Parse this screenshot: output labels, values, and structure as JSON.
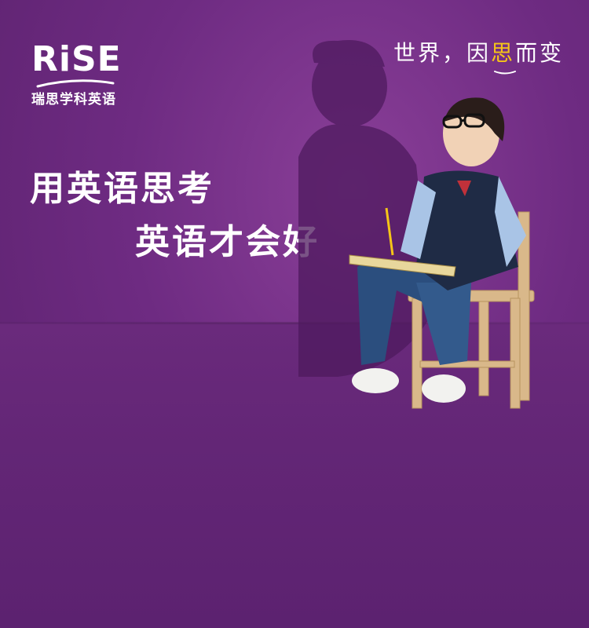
{
  "brand": {
    "logo_text": "RiSE",
    "logo_subtitle": "瑞思学科英语"
  },
  "slogan": {
    "part1": "世界，因",
    "highlight": "思",
    "part2": "而变"
  },
  "headline": {
    "line1": "用英语思考",
    "line2": "英语才会好"
  },
  "colors": {
    "background": "#6e2b82",
    "accent_yellow": "#f5c518",
    "text": "#ffffff"
  }
}
